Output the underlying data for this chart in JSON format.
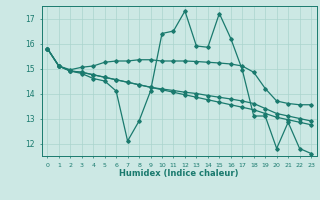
{
  "xlabel": "Humidex (Indice chaleur)",
  "bg_color": "#cce8e4",
  "grid_color": "#aad4ce",
  "line_color": "#1a7a6e",
  "xlim": [
    -0.5,
    23.5
  ],
  "ylim": [
    11.5,
    17.5
  ],
  "yticks": [
    12,
    13,
    14,
    15,
    16,
    17
  ],
  "xticks": [
    0,
    1,
    2,
    3,
    4,
    5,
    6,
    7,
    8,
    9,
    10,
    11,
    12,
    13,
    14,
    15,
    16,
    17,
    18,
    19,
    20,
    21,
    22,
    23
  ],
  "series1_x": [
    0,
    1,
    2,
    3,
    4,
    5,
    6,
    7,
    8,
    9,
    10,
    11,
    12,
    13,
    14,
    15,
    16,
    17,
    18,
    19,
    20,
    21,
    22,
    23
  ],
  "series1_y": [
    15.8,
    15.1,
    14.9,
    14.8,
    14.6,
    14.5,
    14.1,
    12.1,
    12.9,
    14.1,
    16.4,
    16.5,
    17.3,
    15.9,
    15.85,
    17.2,
    16.2,
    14.95,
    13.1,
    13.1,
    11.8,
    12.85,
    11.8,
    11.6
  ],
  "series2_x": [
    0,
    1,
    2,
    3,
    4,
    5,
    6,
    7,
    8,
    9,
    10,
    11,
    12,
    13,
    14,
    15,
    16,
    17,
    18,
    19,
    20,
    21,
    22,
    23
  ],
  "series2_y": [
    15.8,
    15.1,
    14.95,
    15.05,
    15.1,
    15.25,
    15.3,
    15.3,
    15.35,
    15.35,
    15.3,
    15.3,
    15.3,
    15.28,
    15.25,
    15.22,
    15.18,
    15.1,
    14.85,
    14.2,
    13.7,
    13.6,
    13.55,
    13.55
  ],
  "series3_x": [
    0,
    1,
    2,
    3,
    4,
    5,
    6,
    7,
    8,
    9,
    10,
    11,
    12,
    13,
    14,
    15,
    16,
    17,
    18,
    19,
    20,
    21,
    22,
    23
  ],
  "series3_y": [
    15.8,
    15.1,
    14.9,
    14.85,
    14.75,
    14.65,
    14.55,
    14.45,
    14.35,
    14.25,
    14.18,
    14.12,
    14.05,
    14.0,
    13.92,
    13.85,
    13.78,
    13.7,
    13.6,
    13.4,
    13.2,
    13.1,
    13.0,
    12.9
  ],
  "series4_x": [
    0,
    1,
    2,
    3,
    4,
    5,
    6,
    7,
    8,
    9,
    10,
    11,
    12,
    13,
    14,
    15,
    16,
    17,
    18,
    19,
    20,
    21,
    22,
    23
  ],
  "series4_y": [
    15.8,
    15.1,
    14.9,
    14.85,
    14.75,
    14.65,
    14.55,
    14.45,
    14.35,
    14.25,
    14.15,
    14.05,
    13.95,
    13.85,
    13.75,
    13.65,
    13.55,
    13.45,
    13.35,
    13.2,
    13.05,
    12.95,
    12.85,
    12.75
  ]
}
